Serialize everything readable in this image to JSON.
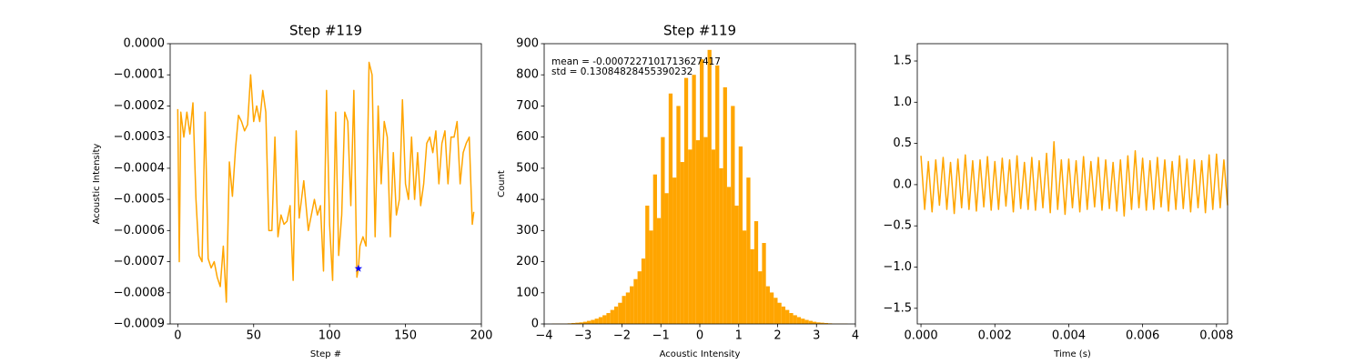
{
  "chart_data": [
    {
      "type": "line",
      "title": "Step #119",
      "xlabel": "Step #",
      "ylabel": "Acoustic Intensity",
      "color": "orange",
      "x": [
        0,
        1,
        2,
        4,
        6,
        8,
        10,
        12,
        14,
        16,
        18,
        20,
        22,
        24,
        26,
        28,
        30,
        32,
        34,
        36,
        38,
        40,
        42,
        44,
        46,
        48,
        50,
        52,
        54,
        56,
        58,
        60,
        62,
        64,
        66,
        68,
        70,
        72,
        74,
        76,
        78,
        80,
        83,
        86,
        88,
        90,
        92,
        94,
        96,
        98,
        100,
        102,
        104,
        106,
        108,
        110,
        112,
        114,
        116,
        118,
        119,
        120,
        122,
        124,
        126,
        128,
        130,
        132,
        134,
        136,
        138,
        140,
        142,
        144,
        146,
        148,
        150,
        152,
        154,
        156,
        158,
        160,
        162,
        164,
        166,
        168,
        170,
        172,
        174,
        176,
        178,
        180,
        182,
        184,
        186,
        188,
        190,
        192,
        194,
        195
      ],
      "values": [
        -0.00021,
        -0.0007,
        -0.00022,
        -0.0003,
        -0.00022,
        -0.00029,
        -0.00019,
        -0.0005,
        -0.00068,
        -0.0007,
        -0.00022,
        -0.00069,
        -0.00072,
        -0.0007,
        -0.00075,
        -0.00078,
        -0.00065,
        -0.00083,
        -0.00038,
        -0.00049,
        -0.00034,
        -0.00023,
        -0.00025,
        -0.00028,
        -0.00026,
        -0.0001,
        -0.00025,
        -0.0002,
        -0.00025,
        -0.00015,
        -0.00022,
        -0.0006,
        -0.0006,
        -0.0003,
        -0.00062,
        -0.00055,
        -0.00058,
        -0.00057,
        -0.00052,
        -0.00076,
        -0.00028,
        -0.00056,
        -0.00044,
        -0.0006,
        -0.00055,
        -0.0005,
        -0.00055,
        -0.00052,
        -0.00073,
        -0.00015,
        -0.00058,
        -0.00076,
        -0.00022,
        -0.00068,
        -0.00055,
        -0.00022,
        -0.00025,
        -0.00052,
        -0.00015,
        -0.00075,
        -0.000722,
        -0.00065,
        -0.00062,
        -0.00065,
        -6e-05,
        -0.0001,
        -0.00062,
        -0.0002,
        -0.00045,
        -0.00025,
        -0.0003,
        -0.00062,
        -0.00035,
        -0.00055,
        -0.0005,
        -0.00018,
        -0.00045,
        -0.0005,
        -0.0003,
        -0.0005,
        -0.00035,
        -0.00052,
        -0.00045,
        -0.00032,
        -0.0003,
        -0.00035,
        -0.00028,
        -0.00045,
        -0.00032,
        -0.00028,
        -0.00045,
        -0.0003,
        -0.0003,
        -0.00025,
        -0.00045,
        -0.00035,
        -0.00032,
        -0.0003,
        -0.00058,
        -0.00054
      ],
      "marker": {
        "x": 119,
        "y": -0.000722,
        "color": "blue"
      },
      "xlim": [
        -5,
        200
      ],
      "xticks": [
        0,
        50,
        100,
        150,
        200
      ],
      "ylim": [
        -0.0009,
        0
      ],
      "yticks": [
        {
          "value": -0.0009,
          "label": "−0.0009"
        },
        {
          "value": -0.0008,
          "label": "−0.0008"
        },
        {
          "value": -0.0007,
          "label": "−0.0007"
        },
        {
          "value": -0.0006,
          "label": "−0.0006"
        },
        {
          "value": -0.0005,
          "label": "−0.0005"
        },
        {
          "value": -0.0004,
          "label": "−0.0004"
        },
        {
          "value": -0.0003,
          "label": "−0.0003"
        },
        {
          "value": -0.0002,
          "label": "−0.0002"
        },
        {
          "value": -0.0001,
          "label": "−0.0001"
        },
        {
          "value": 0,
          "label": "0.0000"
        }
      ]
    },
    {
      "type": "histogram",
      "title": "Step #119",
      "xlabel": "Acoustic Intensity",
      "ylabel": "Count",
      "color": "orange",
      "annotations": [
        "mean = -0.0007227101713627417",
        "std = 0.13084828455390232"
      ],
      "bins": [
        -4,
        -3.9,
        -3.8,
        -3.7,
        -3.6,
        -3.5,
        -3.4,
        -3.3,
        -3.2,
        -3.1,
        -3,
        -2.9,
        -2.8,
        -2.7,
        -2.6,
        -2.5,
        -2.4,
        -2.3,
        -2.2,
        -2.1,
        -2,
        -1.9,
        -1.8,
        -1.7,
        -1.6,
        -1.5,
        -1.4,
        -1.3,
        -1.2,
        -1.1,
        -1,
        -0.9,
        -0.8,
        -0.7,
        -0.6,
        -0.5,
        -0.4,
        -0.3,
        -0.2,
        -0.1,
        0,
        0.1,
        0.2,
        0.3,
        0.4,
        0.5,
        0.6,
        0.7,
        0.8,
        0.9,
        1,
        1.1,
        1.2,
        1.3,
        1.4,
        1.5,
        1.6,
        1.7,
        1.8,
        1.9,
        2,
        2.1,
        2.2,
        2.3,
        2.4,
        2.5,
        2.6,
        2.7,
        2.8,
        2.9,
        3,
        3.1,
        3.2,
        3.3,
        3.4,
        3.5,
        3.6,
        3.7,
        3.8,
        3.9,
        4
      ],
      "values": [
        0,
        0,
        1,
        1,
        1,
        1,
        2,
        3,
        4,
        5,
        7,
        10,
        13,
        17,
        22,
        28,
        35,
        45,
        56,
        68,
        90,
        101,
        121,
        144,
        169,
        210,
        380,
        300,
        480,
        340,
        600,
        420,
        740,
        470,
        700,
        520,
        790,
        560,
        800,
        590,
        850,
        600,
        880,
        560,
        830,
        500,
        760,
        440,
        700,
        380,
        570,
        300,
        470,
        240,
        330,
        169,
        260,
        121,
        101,
        84,
        68,
        56,
        45,
        35,
        28,
        22,
        17,
        13,
        10,
        7,
        5,
        4,
        3,
        2,
        1,
        1,
        1,
        1,
        0,
        0
      ],
      "xlim": [
        -4,
        4
      ],
      "xticks": [
        {
          "value": -4,
          "label": "−4"
        },
        {
          "value": -3,
          "label": "−3"
        },
        {
          "value": -2,
          "label": "−2"
        },
        {
          "value": -1,
          "label": "−1"
        },
        0,
        1,
        2,
        3,
        4
      ],
      "ylim": [
        0,
        900
      ],
      "yticks": [
        0,
        100,
        200,
        300,
        400,
        500,
        600,
        700,
        800,
        900
      ]
    },
    {
      "type": "line",
      "xlabel": "Time (s)",
      "color": "orange",
      "x": [
        0,
        0.0001,
        0.0002,
        0.0003,
        0.0004,
        0.0005,
        0.0006,
        0.0007,
        0.0008,
        0.0009,
        0.001,
        0.0011,
        0.0012,
        0.0013,
        0.0014,
        0.0015,
        0.0016,
        0.0017,
        0.0018,
        0.0019,
        0.002,
        0.0021,
        0.0022,
        0.0023,
        0.0024,
        0.0025,
        0.0026,
        0.0027,
        0.0028,
        0.0029,
        0.003,
        0.0031,
        0.0032,
        0.0033,
        0.0034,
        0.0035,
        0.0036,
        0.0037,
        0.0038,
        0.0039,
        0.004,
        0.0041,
        0.0042,
        0.0043,
        0.0044,
        0.0045,
        0.0046,
        0.0047,
        0.0048,
        0.0049,
        0.005,
        0.0051,
        0.0052,
        0.0053,
        0.0054,
        0.0055,
        0.0056,
        0.0057,
        0.0058,
        0.0059,
        0.006,
        0.0061,
        0.0062,
        0.0063,
        0.0064,
        0.0065,
        0.0066,
        0.0067,
        0.0068,
        0.0069,
        0.007,
        0.0071,
        0.0072,
        0.0073,
        0.0074,
        0.0075,
        0.0076,
        0.0077,
        0.0078,
        0.0079,
        0.008,
        0.0081,
        0.0082,
        0.0083
      ],
      "values": [
        0.35,
        -0.3,
        0.28,
        -0.33,
        0.3,
        -0.25,
        0.33,
        -0.3,
        0.27,
        -0.35,
        0.31,
        -0.28,
        0.36,
        -0.3,
        0.29,
        -0.32,
        0.3,
        -0.27,
        0.34,
        -0.31,
        0.28,
        -0.3,
        0.32,
        -0.26,
        0.3,
        -0.33,
        0.35,
        -0.29,
        0.27,
        -0.3,
        0.33,
        -0.31,
        0.29,
        -0.28,
        0.38,
        -0.34,
        0.52,
        -0.3,
        0.3,
        -0.36,
        0.31,
        -0.28,
        0.29,
        -0.33,
        0.34,
        -0.3,
        0.28,
        -0.27,
        0.33,
        -0.31,
        0.3,
        -0.29,
        0.27,
        -0.32,
        0.3,
        -0.38,
        0.35,
        -0.3,
        0.41,
        -0.28,
        0.32,
        -0.31,
        0.29,
        -0.3,
        0.33,
        -0.27,
        0.3,
        -0.32,
        0.28,
        -0.3,
        0.35,
        -0.29,
        0.31,
        -0.33,
        0.3,
        -0.28,
        0.29,
        -0.34,
        0.36,
        -0.3,
        0.37,
        -0.28,
        0.3,
        -0.25
      ],
      "xlim": [
        -0.0001,
        0.0083
      ],
      "xticks": [
        {
          "value": 0,
          "label": "0.000"
        },
        {
          "value": 0.002,
          "label": "0.002"
        },
        {
          "value": 0.004,
          "label": "0.004"
        },
        {
          "value": 0.006,
          "label": "0.006"
        },
        {
          "value": 0.008,
          "label": "0.008"
        }
      ],
      "ylim": [
        -1.69,
        1.71
      ],
      "yticks": [
        {
          "value": -1.5,
          "label": "−1.5"
        },
        {
          "value": -1,
          "label": "−1.0"
        },
        {
          "value": -0.5,
          "label": "−0.5"
        },
        {
          "value": 0,
          "label": "0.0"
        },
        0.5,
        {
          "value": 1,
          "label": "1.0"
        },
        1.5
      ]
    }
  ]
}
